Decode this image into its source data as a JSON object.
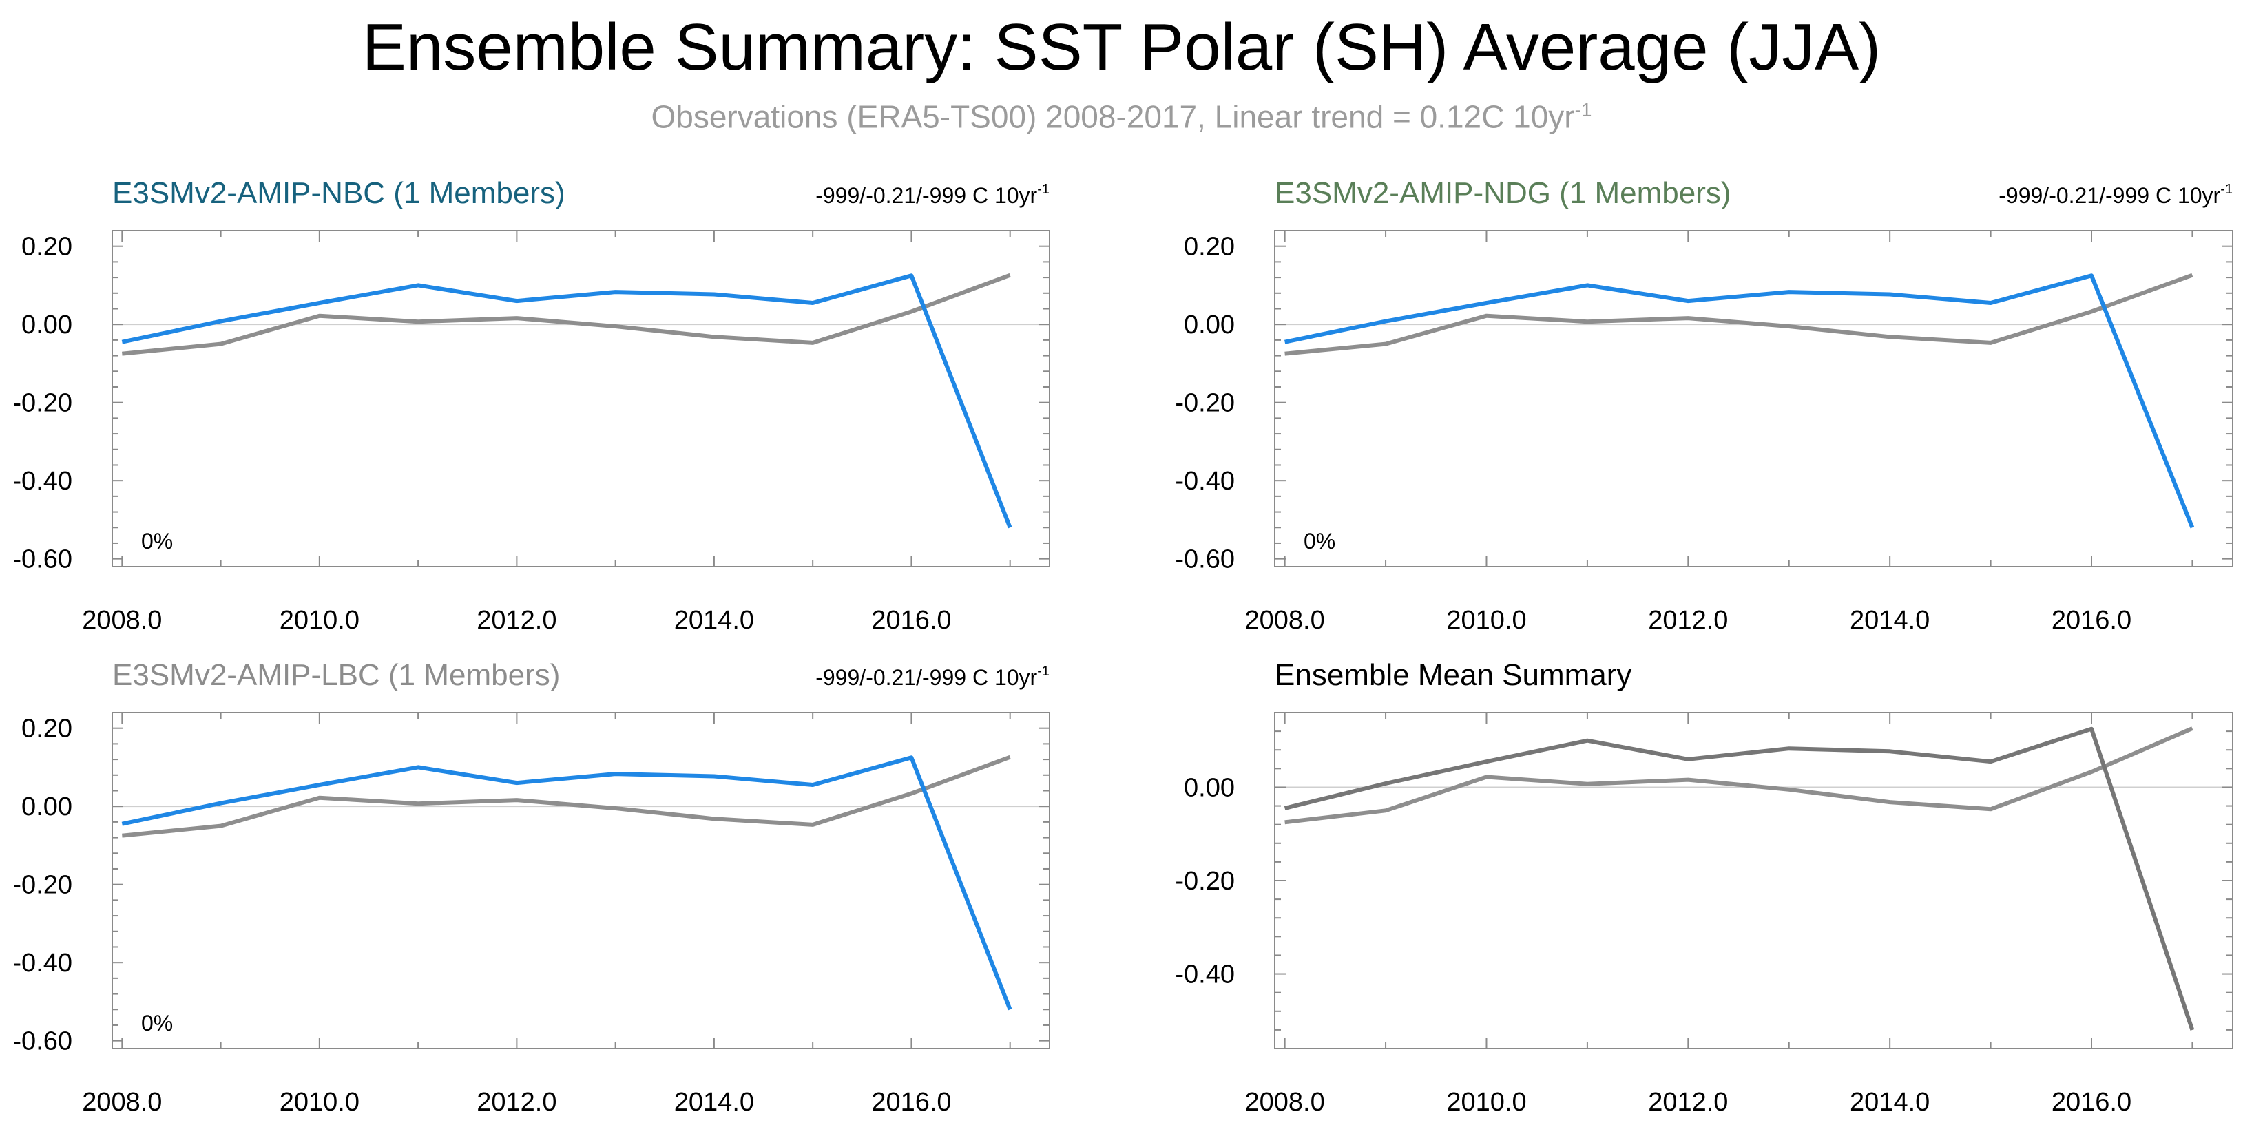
{
  "title": "Ensemble Summary: SST Polar (SH) Average (JJA)",
  "subtitle": "Observations (ERA5-TS00) 2008-2017, Linear trend = 0.12C 10yr",
  "subtitle_sup": "-1",
  "colors": {
    "model": "#1f87e5",
    "obs": "#8e8e8e",
    "mean": "#767676",
    "nbc": "#17627e",
    "ndg": "#5a7f58",
    "lbc": "#8c8c8c"
  },
  "chart_data": [
    {
      "type": "line",
      "title": "E3SMv2-AMIP-NBC (1 Members)",
      "title_color": "#17627e",
      "trend_text": "-999/-0.21/-999 C 10yr",
      "trend_sup": "-1",
      "annotation": "0%",
      "x": [
        2008,
        2009,
        2010,
        2011,
        2012,
        2013,
        2014,
        2015,
        2016,
        2017
      ],
      "xlim": [
        2007.9,
        2017.4
      ],
      "ylim": [
        -0.62,
        0.24
      ],
      "xticks": [
        2008,
        2010,
        2012,
        2014,
        2016
      ],
      "xtick_labels": [
        "2008.0",
        "2010.0",
        "2012.0",
        "2014.0",
        "2016.0"
      ],
      "yticks": [
        0.2,
        0.0,
        -0.2,
        -0.4,
        -0.6
      ],
      "ytick_labels": [
        "0.20",
        "0.00",
        "-0.20",
        "-0.40",
        "-0.60"
      ],
      "series": [
        {
          "values": [
            -0.045,
            0.008,
            0.055,
            0.1,
            0.06,
            0.083,
            0.077,
            0.055,
            0.125,
            -0.52
          ],
          "color": "#1f87e5"
        },
        {
          "values": [
            -0.075,
            -0.05,
            0.022,
            0.007,
            0.016,
            -0.005,
            -0.032,
            -0.047,
            0.033,
            0.126
          ],
          "color": "#8e8e8e"
        }
      ]
    },
    {
      "type": "line",
      "title": "E3SMv2-AMIP-NDG (1 Members)",
      "title_color": "#5a7f58",
      "trend_text": "-999/-0.21/-999 C 10yr",
      "trend_sup": "-1",
      "annotation": "0%",
      "x": [
        2008,
        2009,
        2010,
        2011,
        2012,
        2013,
        2014,
        2015,
        2016,
        2017
      ],
      "xlim": [
        2007.9,
        2017.4
      ],
      "ylim": [
        -0.62,
        0.24
      ],
      "xticks": [
        2008,
        2010,
        2012,
        2014,
        2016
      ],
      "xtick_labels": [
        "2008.0",
        "2010.0",
        "2012.0",
        "2014.0",
        "2016.0"
      ],
      "yticks": [
        0.2,
        0.0,
        -0.2,
        -0.4,
        -0.6
      ],
      "ytick_labels": [
        "0.20",
        "0.00",
        "-0.20",
        "-0.40",
        "-0.60"
      ],
      "series": [
        {
          "values": [
            -0.045,
            0.008,
            0.055,
            0.1,
            0.06,
            0.083,
            0.077,
            0.055,
            0.125,
            -0.52
          ],
          "color": "#1f87e5"
        },
        {
          "values": [
            -0.075,
            -0.05,
            0.022,
            0.007,
            0.016,
            -0.005,
            -0.032,
            -0.047,
            0.033,
            0.126
          ],
          "color": "#8e8e8e"
        }
      ]
    },
    {
      "type": "line",
      "title": "E3SMv2-AMIP-LBC (1 Members)",
      "title_color": "#8c8c8c",
      "trend_text": "-999/-0.21/-999 C 10yr",
      "trend_sup": "-1",
      "annotation": "0%",
      "x": [
        2008,
        2009,
        2010,
        2011,
        2012,
        2013,
        2014,
        2015,
        2016,
        2017
      ],
      "xlim": [
        2007.9,
        2017.4
      ],
      "ylim": [
        -0.62,
        0.24
      ],
      "xticks": [
        2008,
        2010,
        2012,
        2014,
        2016
      ],
      "xtick_labels": [
        "2008.0",
        "2010.0",
        "2012.0",
        "2014.0",
        "2016.0"
      ],
      "yticks": [
        0.2,
        0.0,
        -0.2,
        -0.4,
        -0.6
      ],
      "ytick_labels": [
        "0.20",
        "0.00",
        "-0.20",
        "-0.40",
        "-0.60"
      ],
      "series": [
        {
          "values": [
            -0.045,
            0.008,
            0.055,
            0.1,
            0.06,
            0.083,
            0.077,
            0.055,
            0.125,
            -0.52
          ],
          "color": "#1f87e5"
        },
        {
          "values": [
            -0.075,
            -0.05,
            0.022,
            0.007,
            0.016,
            -0.005,
            -0.032,
            -0.047,
            0.033,
            0.126
          ],
          "color": "#8e8e8e"
        }
      ]
    },
    {
      "type": "line",
      "title": "Ensemble Mean Summary",
      "title_color": "#000000",
      "trend_text": "",
      "trend_sup": "",
      "annotation": "",
      "x": [
        2008,
        2009,
        2010,
        2011,
        2012,
        2013,
        2014,
        2015,
        2016,
        2017
      ],
      "xlim": [
        2007.9,
        2017.4
      ],
      "ylim": [
        -0.56,
        0.16
      ],
      "xticks": [
        2008,
        2010,
        2012,
        2014,
        2016
      ],
      "xtick_labels": [
        "2008.0",
        "2010.0",
        "2012.0",
        "2014.0",
        "2016.0"
      ],
      "yticks": [
        0.0,
        -0.2,
        -0.4
      ],
      "ytick_labels": [
        "0.00",
        "-0.20",
        "-0.40"
      ],
      "series": [
        {
          "values": [
            -0.045,
            0.008,
            0.055,
            0.1,
            0.06,
            0.083,
            0.077,
            0.055,
            0.125,
            -0.52
          ],
          "color": "#767676"
        },
        {
          "values": [
            -0.075,
            -0.05,
            0.022,
            0.007,
            0.016,
            -0.005,
            -0.032,
            -0.047,
            0.033,
            0.126
          ],
          "color": "#8e8e8e"
        }
      ]
    }
  ]
}
